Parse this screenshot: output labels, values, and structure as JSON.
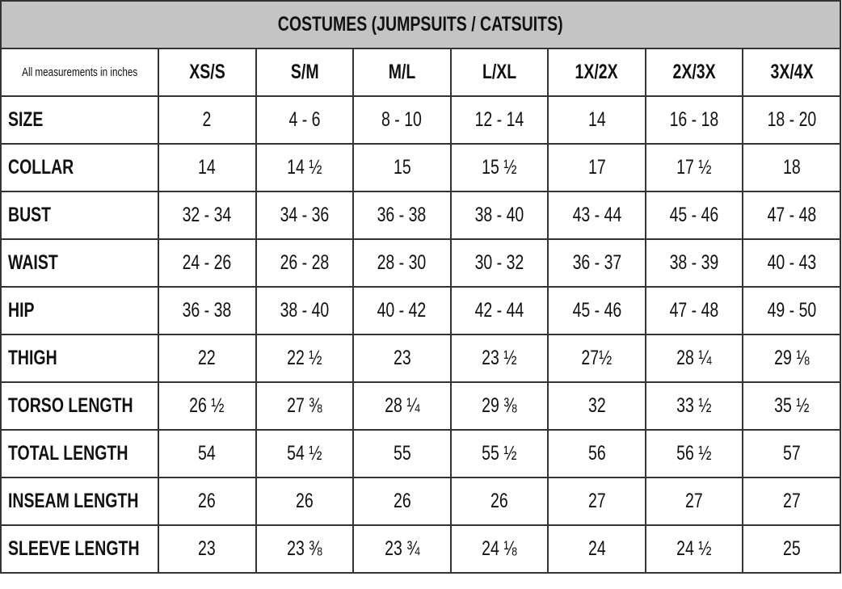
{
  "title": "COSTUMES (JUMPSUITS / CATSUITS)",
  "note": "All measurements in inches",
  "columns": [
    "XS/S",
    "S/M",
    "M/L",
    "L/XL",
    "1X/2X",
    "2X/3X",
    "3X/4X"
  ],
  "rows": [
    {
      "label": "SIZE",
      "values": [
        "2",
        "4 - 6",
        "8 - 10",
        "12 - 14",
        "14",
        "16 - 18",
        "18 - 20"
      ]
    },
    {
      "label": "COLLAR",
      "values": [
        "14",
        "14 ½",
        "15",
        "15 ½",
        "17",
        "17 ½",
        "18"
      ]
    },
    {
      "label": "BUST",
      "values": [
        "32 - 34",
        "34 - 36",
        "36 - 38",
        "38 - 40",
        "43 - 44",
        "45 - 46",
        "47 - 48"
      ]
    },
    {
      "label": "WAIST",
      "values": [
        "24 - 26",
        "26 - 28",
        "28 - 30",
        "30 - 32",
        "36 - 37",
        "38 - 39",
        "40 - 43"
      ]
    },
    {
      "label": "HIP",
      "values": [
        "36 - 38",
        "38 - 40",
        "40 - 42",
        "42 - 44",
        "45 - 46",
        "47 - 48",
        "49 - 50"
      ]
    },
    {
      "label": "THIGH",
      "values": [
        "22",
        "22 ½",
        "23",
        "23 ½",
        "27½",
        "28 ¼",
        "29 ⅛"
      ]
    },
    {
      "label": "TORSO LENGTH",
      "values": [
        "26 ½",
        "27 ⅜",
        "28 ¼",
        "29 ⅜",
        "32",
        "33 ½",
        "35 ½"
      ]
    },
    {
      "label": "TOTAL LENGTH",
      "values": [
        "54",
        "54 ½",
        "55",
        "55 ½",
        "56",
        "56 ½",
        "57"
      ]
    },
    {
      "label": "INSEAM LENGTH",
      "values": [
        "26",
        "26",
        "26",
        "26",
        "27",
        "27",
        "27"
      ]
    },
    {
      "label": "SLEEVE LENGTH",
      "values": [
        "23",
        "23 ⅜",
        "23 ¾",
        "24 ⅛",
        "24",
        "24 ½",
        "25"
      ]
    }
  ],
  "colors": {
    "title_bg": "#c4c4c4",
    "border": "#333333"
  }
}
